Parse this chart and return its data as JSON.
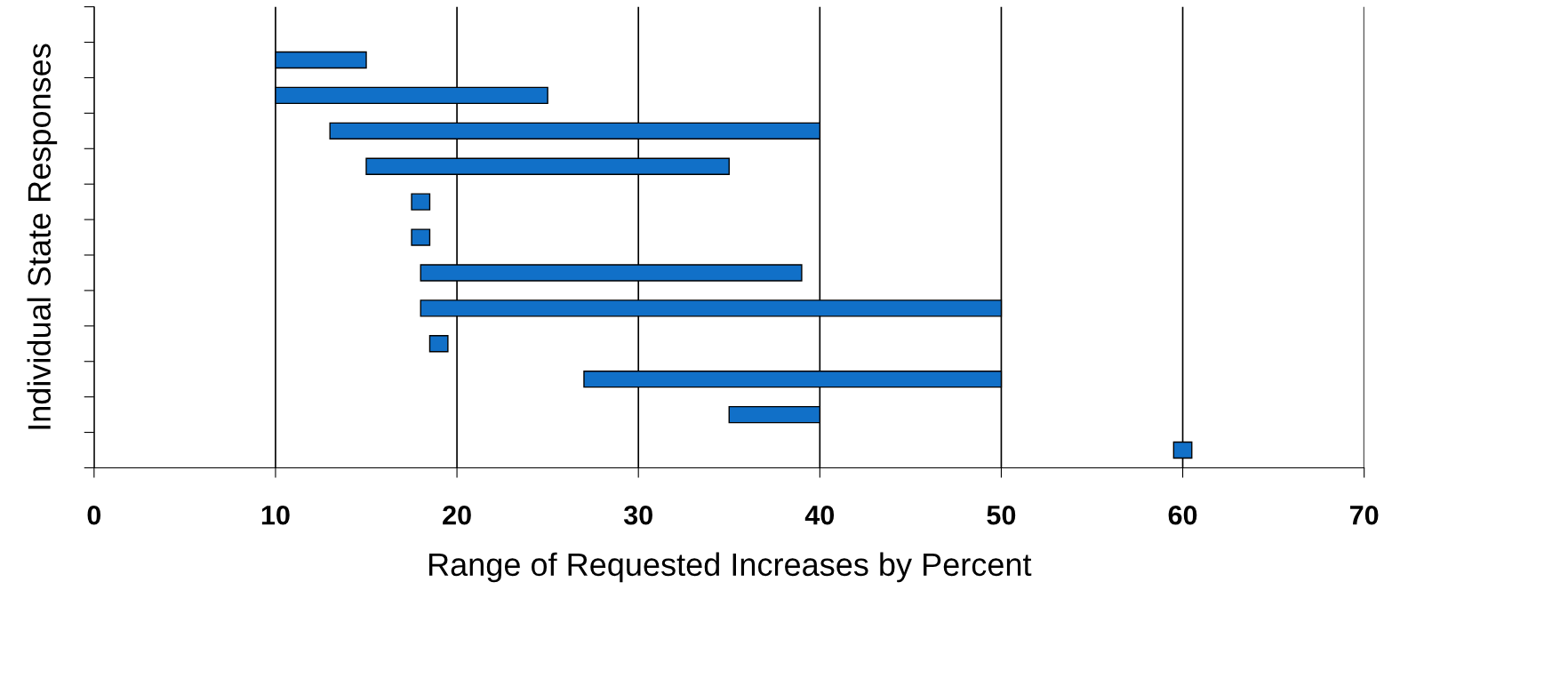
{
  "chart_data": {
    "type": "bar",
    "orientation": "horizontal",
    "xlabel": "Range of Requested Increases by Percent",
    "ylabel": "Individual State Responses",
    "categories": [
      null,
      null,
      null,
      null,
      null,
      null,
      null,
      null,
      null,
      null,
      null,
      null,
      null
    ],
    "base": [
      null,
      10,
      10,
      13,
      15,
      17.5,
      17.5,
      18,
      18,
      18.5,
      27,
      35,
      59.5
    ],
    "values": [
      null,
      5,
      15,
      27,
      20,
      1,
      1,
      21,
      32,
      1,
      23,
      5,
      1
    ],
    "color": "#1170c8",
    "xlim": [
      0,
      70
    ],
    "xticks": [
      0,
      10,
      20,
      30,
      40,
      50,
      60,
      70
    ],
    "grid": "x",
    "tick_labels": "x"
  }
}
